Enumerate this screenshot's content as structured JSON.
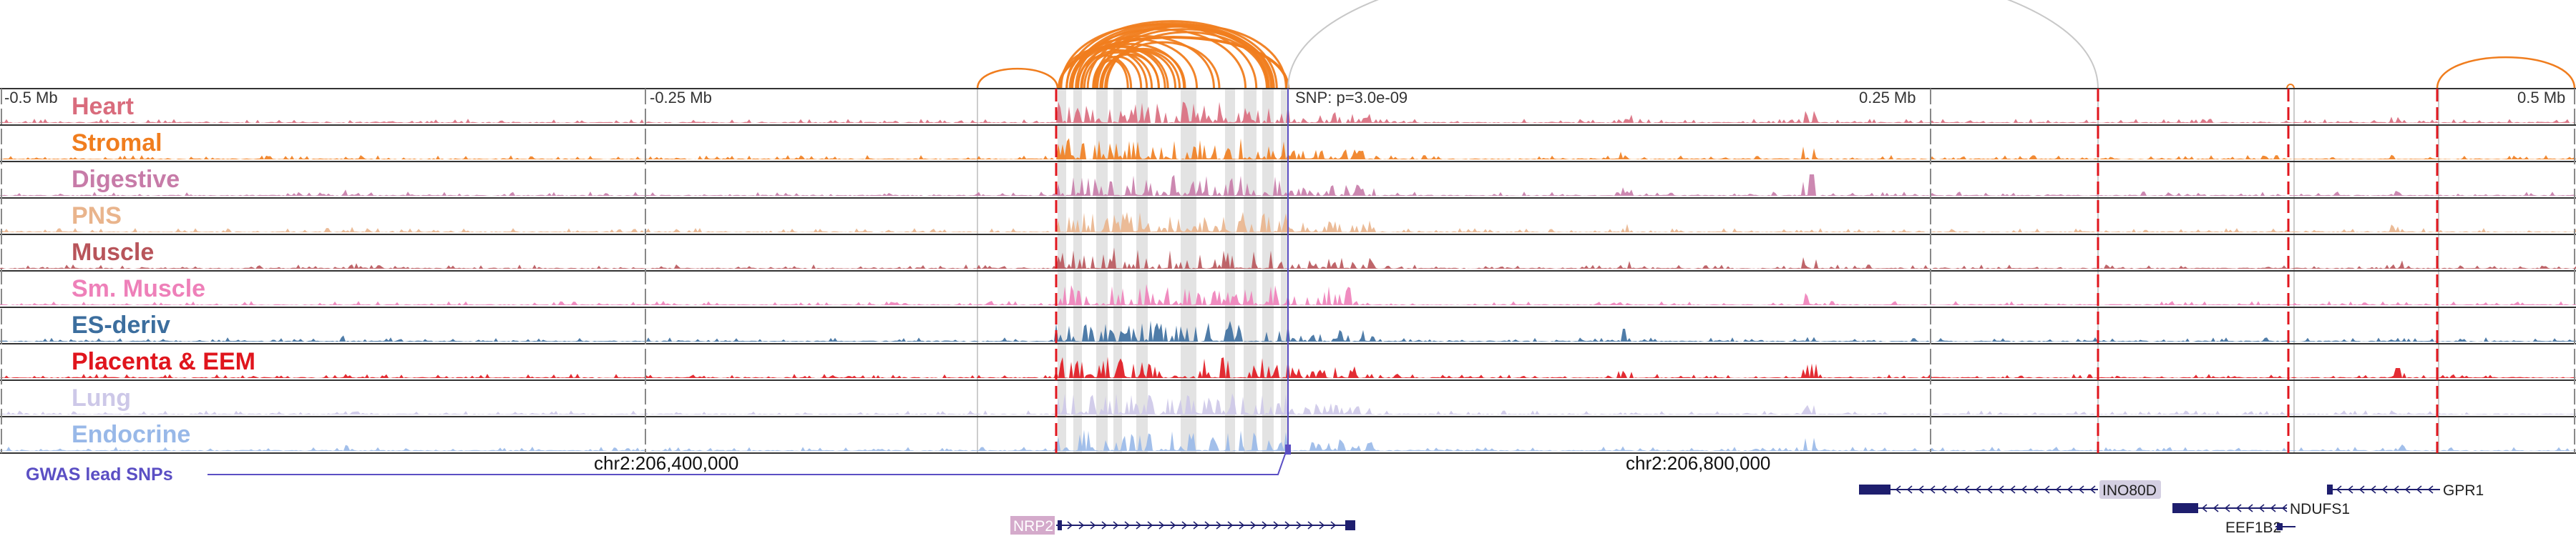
{
  "axis": {
    "ticks": [
      {
        "label": "-0.5 Mb",
        "pos": -0.5
      },
      {
        "label": "-0.25 Mb",
        "pos": -0.25
      },
      {
        "label": "0.25 Mb",
        "pos": 0.25
      },
      {
        "label": "0.5 Mb",
        "pos": 0.5
      }
    ],
    "coordinates": [
      {
        "label": "chr2:206,400,000",
        "pos": -0.307
      },
      {
        "label": "chr2:206,800,000",
        "pos": 0.177
      }
    ],
    "snp_label": "SNP: p=3.0e-09"
  },
  "tracks": [
    {
      "label": "Heart",
      "color": "#d96c7d"
    },
    {
      "label": "Stromal",
      "color": "#f07d1e"
    },
    {
      "label": "Digestive",
      "color": "#c77ba8"
    },
    {
      "label": "PNS",
      "color": "#e9b48c"
    },
    {
      "label": "Muscle",
      "color": "#b8545a"
    },
    {
      "label": "Sm. Muscle",
      "color": "#ee80b9"
    },
    {
      "label": "ES-deriv",
      "color": "#3c6e9e"
    },
    {
      "label": "Placenta & EEM",
      "color": "#e0151d"
    },
    {
      "label": "Lung",
      "color": "#cdc8e8"
    },
    {
      "label": "Endocrine",
      "color": "#98b8e8"
    }
  ],
  "gwas": {
    "label": "GWAS lead SNPs",
    "color": "#5b4fc4"
  },
  "genes": [
    {
      "name": "NRP2",
      "highlight": true
    },
    {
      "name": "INO80D",
      "highlight": true
    },
    {
      "name": "NDUFS1",
      "highlight": false
    },
    {
      "name": "EEF1B2",
      "highlight": false
    },
    {
      "name": "GPR1",
      "highlight": false
    }
  ],
  "colors": {
    "arc": "#f07d1e",
    "arc_faint": "#c8c8c8",
    "highlight_band": "#d9d9d9",
    "dashed_line": "#e0151d",
    "gene": "#1e1e6e",
    "gene_label_bg": "#d4aacb"
  }
}
